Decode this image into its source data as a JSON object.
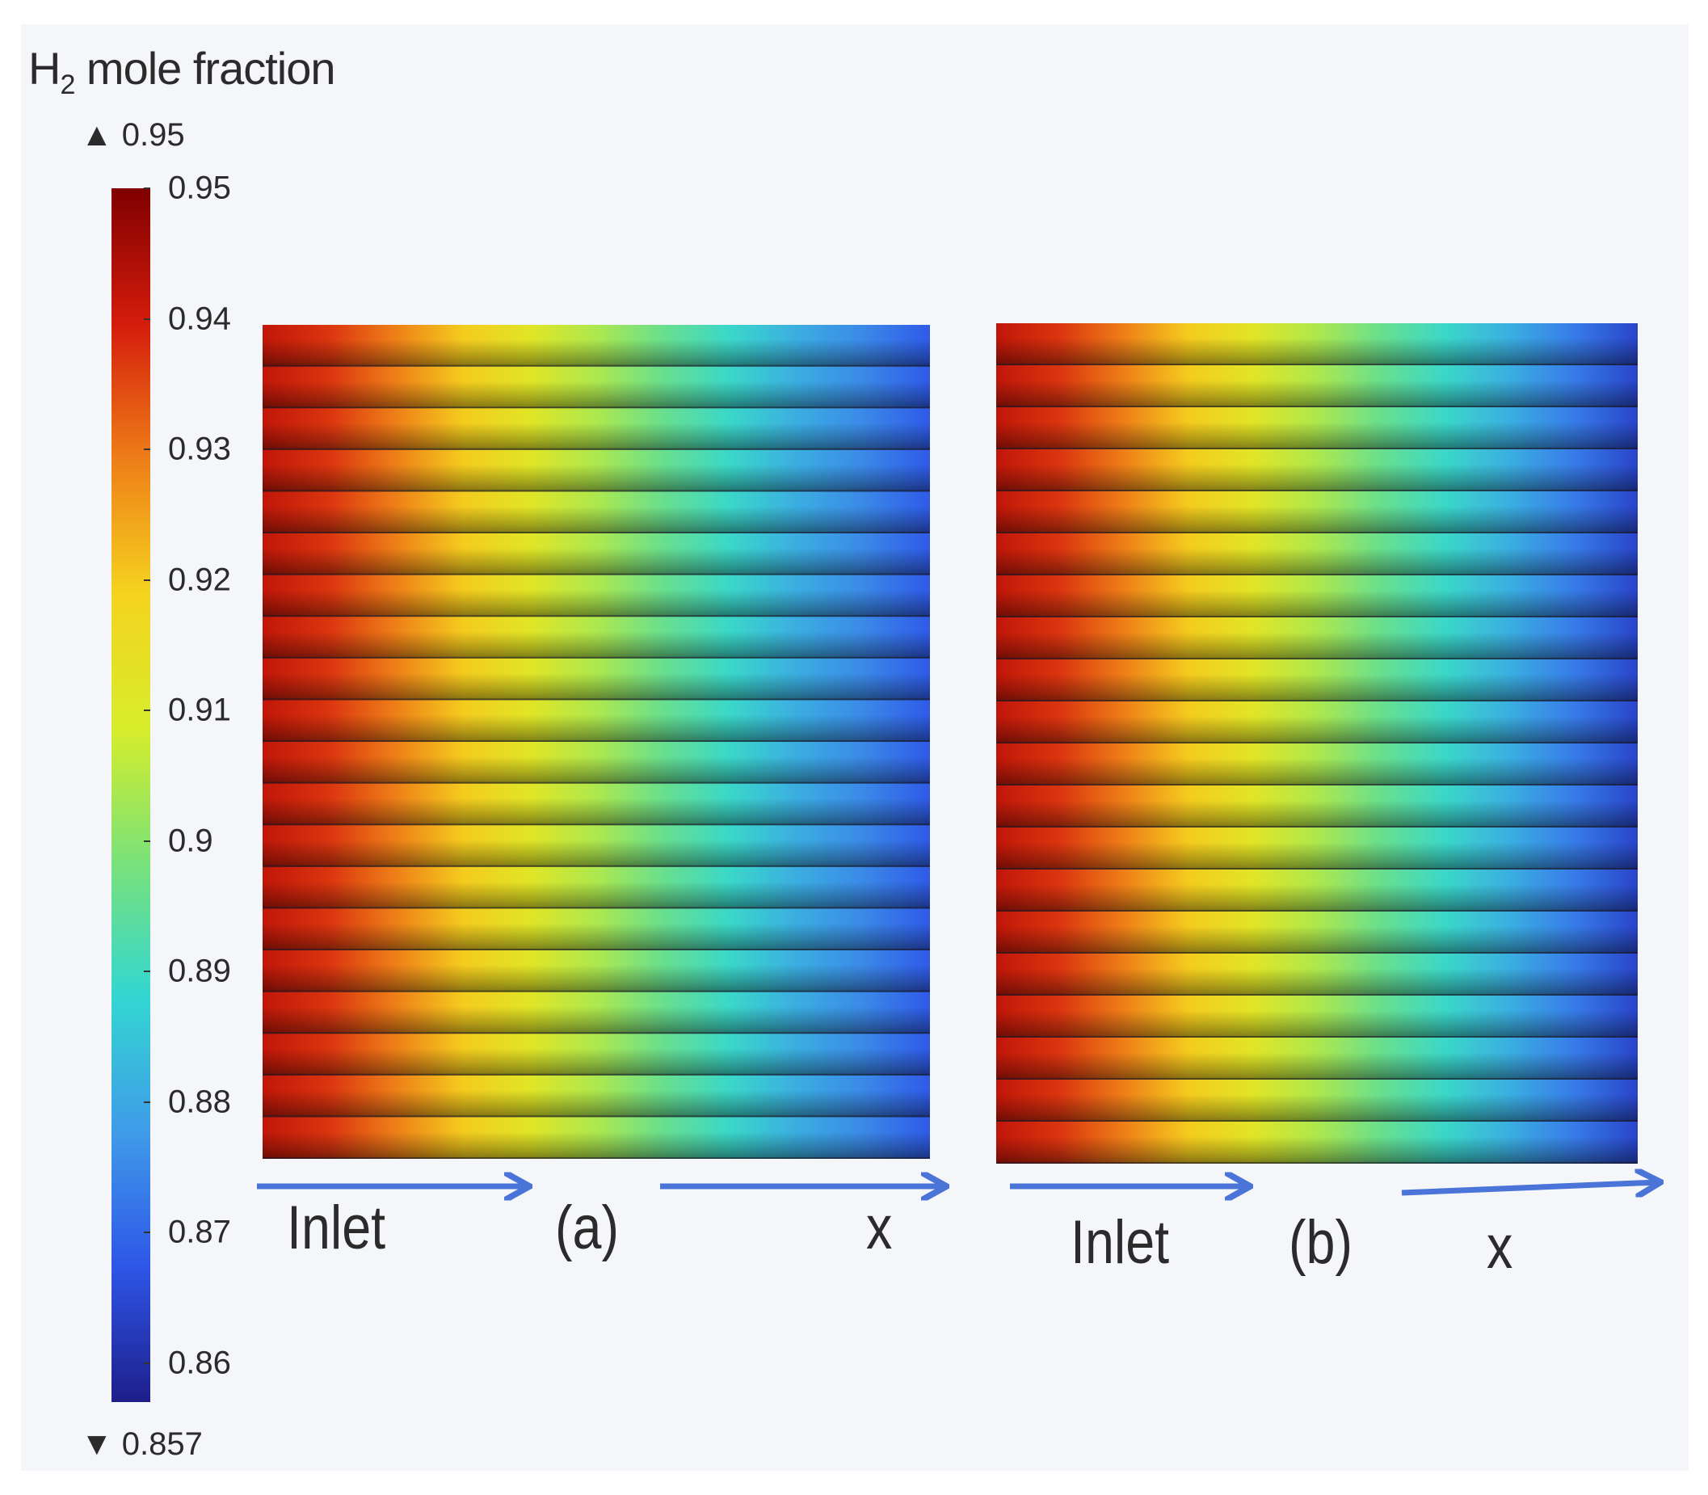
{
  "chart_data": {
    "type": "heatmap",
    "colorbar": {
      "title_main": "H",
      "title_sub": "2",
      "title_rest": " mole fraction",
      "max_label": "0.95",
      "min_label": "0.857",
      "range": [
        0.857,
        0.95
      ],
      "ticks": [
        "0.95",
        "0.94",
        "0.93",
        "0.92",
        "0.91",
        "0.9",
        "0.89",
        "0.88",
        "0.87",
        "0.86"
      ],
      "tick_values": [
        0.95,
        0.94,
        0.93,
        0.92,
        0.91,
        0.9,
        0.89,
        0.88,
        0.87,
        0.86
      ],
      "colormap": [
        "#7f0000",
        "#d41c0c",
        "#ee7d18",
        "#f5d31f",
        "#d7ed2a",
        "#79e27a",
        "#33d6d2",
        "#3f9be8",
        "#2e56e8",
        "#1e1e8a"
      ]
    },
    "panels": [
      {
        "label": "(a)",
        "inlet_label": "Inlet",
        "axis_label": "x",
        "channel_count": 20,
        "profile_x": [
          0,
          0.1,
          0.2,
          0.3,
          0.4,
          0.5,
          0.6,
          0.7,
          0.8,
          0.9,
          1.0
        ],
        "profile_value": [
          0.942,
          0.937,
          0.929,
          0.92,
          0.912,
          0.904,
          0.896,
          0.889,
          0.881,
          0.875,
          0.868
        ]
      },
      {
        "label": "(b)",
        "inlet_label": "Inlet",
        "axis_label": "x",
        "channel_count": 20,
        "profile_x": [
          0,
          0.1,
          0.2,
          0.3,
          0.4,
          0.5,
          0.6,
          0.7,
          0.8,
          0.9,
          1.0
        ],
        "profile_value": [
          0.942,
          0.937,
          0.929,
          0.92,
          0.912,
          0.904,
          0.896,
          0.889,
          0.881,
          0.873,
          0.864
        ]
      }
    ]
  }
}
